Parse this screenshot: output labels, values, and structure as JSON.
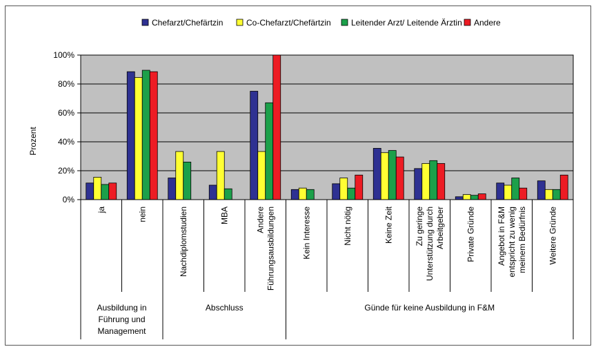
{
  "chart_data": {
    "type": "bar",
    "ylabel": "Prozent",
    "ylim": [
      0,
      100
    ],
    "yticks": [
      "0%",
      "20%",
      "40%",
      "60%",
      "80%",
      "100%"
    ],
    "grid": true,
    "legend_position": "top",
    "plot_background": "#c0c0c0",
    "categories": [
      "ja",
      "nein",
      "Nachdiplomstudien",
      "MBA",
      "Andere Führungsausbildungen",
      "Kein Interesse",
      "Nicht nötig",
      "Keine Zeit",
      "Zu geringe Unterstützung durch Arbeitgeber",
      "Private Gründe",
      "Angebot in F&M entspricht zu wenig meinem Bedürfnis",
      "Weitere Gründe"
    ],
    "category_lines": [
      [
        "ja"
      ],
      [
        "nein"
      ],
      [
        "Nachdiplomstudien"
      ],
      [
        "MBA"
      ],
      [
        "Andere",
        "Führungsausbildungen"
      ],
      [
        "Kein Interesse"
      ],
      [
        "Nicht nötig"
      ],
      [
        "Keine Zeit"
      ],
      [
        "Zu geringe",
        "Unterstützung durch",
        "Arbeitgeber"
      ],
      [
        "Private Gründe"
      ],
      [
        "Angebot in F&M",
        "entspricht zu wenig",
        "meinem Bedürfnis"
      ],
      [
        "Weitere Gründe"
      ]
    ],
    "groups": [
      {
        "lines": [
          "Ausbildung in",
          "Führung und",
          "Management"
        ],
        "count": 2
      },
      {
        "lines": [
          "Abschluss"
        ],
        "count": 3
      },
      {
        "lines": [
          "Günde für keine Ausbildung in F&M"
        ],
        "count": 7
      }
    ],
    "series": [
      {
        "name": "Chefarzt/Chefärtzin",
        "color": "#2e3192",
        "values": [
          11.5,
          88.5,
          15,
          10,
          75,
          7,
          11,
          35.5,
          21.5,
          2,
          11.5,
          13
        ]
      },
      {
        "name": "Co-Chefarzt/Chefärtzin",
        "color": "#ffff33",
        "values": [
          15.5,
          84.5,
          33.3,
          33.3,
          33.3,
          8,
          15,
          32.5,
          25,
          3.5,
          10,
          7
        ]
      },
      {
        "name": "Leitender Arzt/ Leitende Ärztin",
        "color": "#1ca04a",
        "values": [
          10.5,
          89.5,
          26,
          7.5,
          67,
          7,
          8,
          34,
          27,
          3,
          15,
          7
        ]
      },
      {
        "name": "Andere",
        "color": "#ed1c24",
        "values": [
          11.5,
          88.5,
          0,
          0,
          100,
          0,
          17,
          29.5,
          25,
          4,
          8,
          17
        ]
      }
    ]
  }
}
